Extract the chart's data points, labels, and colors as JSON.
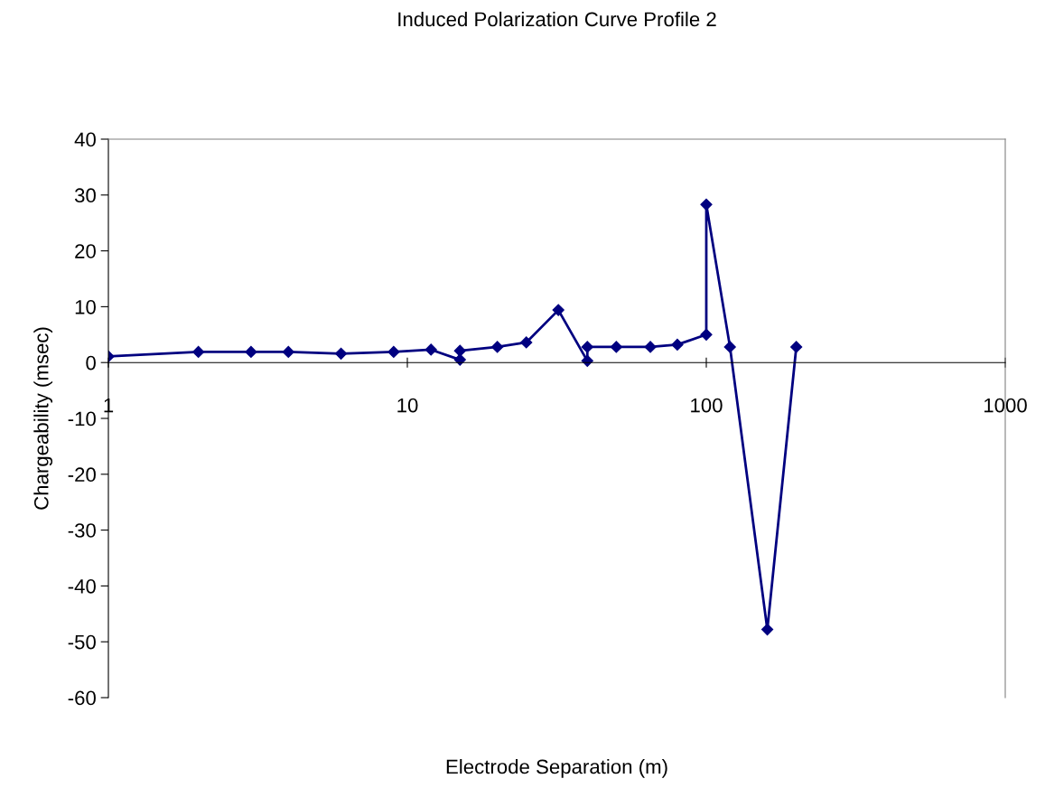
{
  "chart_data": {
    "type": "line",
    "title": "Induced Polarization Curve Profile 2",
    "xlabel": "Electrode Separation (m)",
    "ylabel": "Chargeability (msec)",
    "log": "x",
    "xlim": [
      1,
      1000
    ],
    "xticks": [
      1,
      10,
      100,
      1000
    ],
    "ylim": [
      -60,
      40
    ],
    "yticks": [
      -60,
      -50,
      -40,
      -30,
      -20,
      -10,
      0,
      10,
      20,
      30,
      40
    ],
    "grid": false,
    "legend": false,
    "marker": "diamond",
    "line_style": "solid",
    "series": [
      {
        "color": "#000080",
        "x": [
          1,
          2,
          3,
          4,
          6,
          9,
          12,
          15,
          15,
          20,
          25,
          32,
          40,
          40,
          50,
          65,
          80,
          100,
          100,
          120,
          160,
          200
        ],
        "values": [
          1.1,
          1.9,
          1.9,
          1.9,
          1.6,
          1.9,
          2.3,
          0.5,
          2.1,
          2.8,
          3.6,
          9.4,
          0.3,
          2.8,
          2.8,
          2.8,
          3.2,
          5,
          28.3,
          2.8,
          -47.8,
          2.8
        ]
      }
    ]
  }
}
